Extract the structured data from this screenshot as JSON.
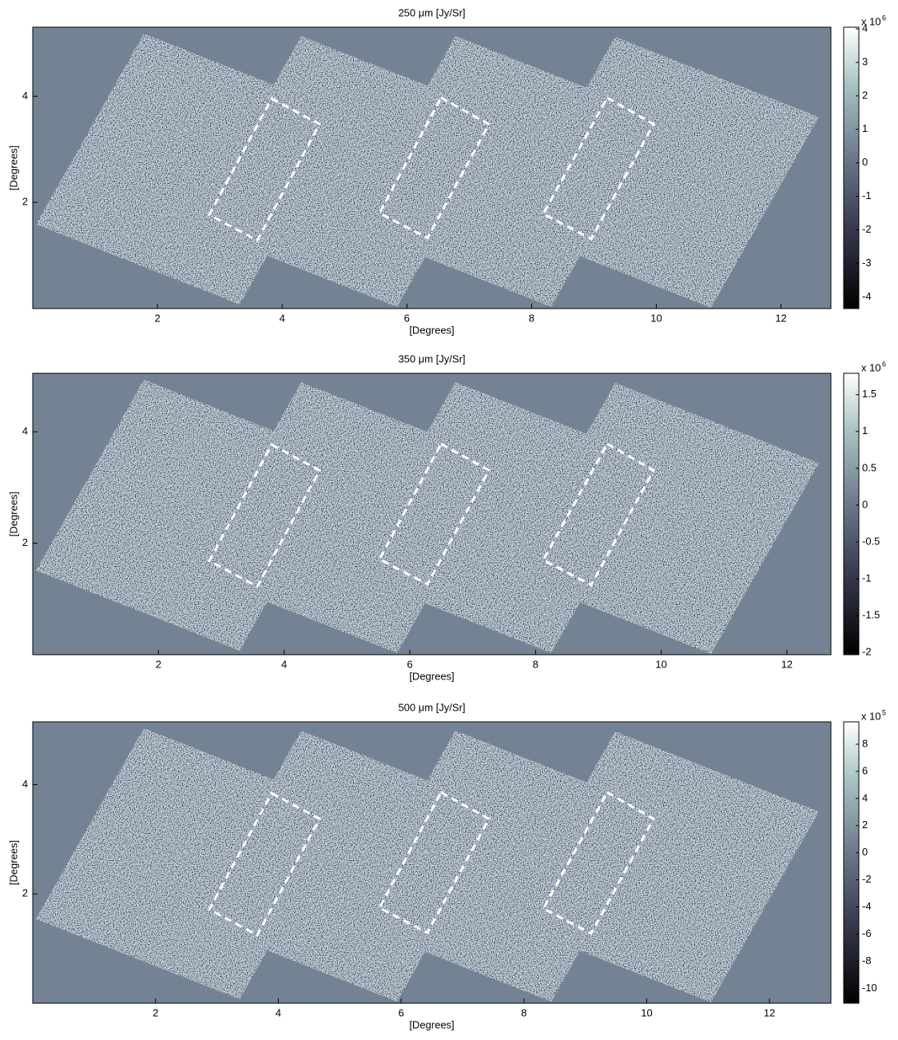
{
  "chart_data": [
    {
      "type": "image",
      "title": "250 μm  [Jy/Sr]",
      "x_label": "[Degrees]",
      "y_label": "[Degrees]",
      "xlim": [
        0,
        12.8
      ],
      "ylim": [
        0,
        5.3
      ],
      "xticks": [
        2,
        4,
        6,
        8,
        10,
        12
      ],
      "yticks": [
        2,
        4
      ],
      "colorbar": {
        "lim": [
          -4.35,
          4.05
        ],
        "ticks": [
          4,
          3,
          2,
          1,
          0,
          -1,
          -2,
          -3,
          -4
        ],
        "scale": "x 10",
        "exponent": "6"
      }
    },
    {
      "type": "image",
      "title": "350 μm  [Jy/Sr]",
      "x_label": "[Degrees]",
      "y_label": "[Degrees]",
      "xlim": [
        0,
        12.7
      ],
      "ylim": [
        0,
        5.05
      ],
      "xticks": [
        2,
        4,
        6,
        8,
        10,
        12
      ],
      "yticks": [
        2,
        4
      ],
      "colorbar": {
        "lim": [
          -2.03,
          1.79
        ],
        "ticks": [
          1.5,
          1,
          0.5,
          0,
          -0.5,
          -1,
          -1.5,
          -2
        ],
        "scale": "x 10",
        "exponent": "6"
      }
    },
    {
      "type": "image",
      "title": "500 μm  [Jy/Sr]",
      "x_label": "[Degrees]",
      "y_label": "[Degrees]",
      "xlim": [
        0,
        13.0
      ],
      "ylim": [
        0,
        5.15
      ],
      "xticks": [
        2,
        4,
        6,
        8,
        10,
        12
      ],
      "yticks": [
        2,
        4
      ],
      "colorbar": {
        "lim": [
          -11.1,
          9.65
        ],
        "ticks": [
          8,
          6,
          4,
          2,
          0,
          -2,
          -4,
          -6,
          -8,
          -10
        ],
        "scale": "x 10",
        "exponent": "5"
      }
    }
  ]
}
